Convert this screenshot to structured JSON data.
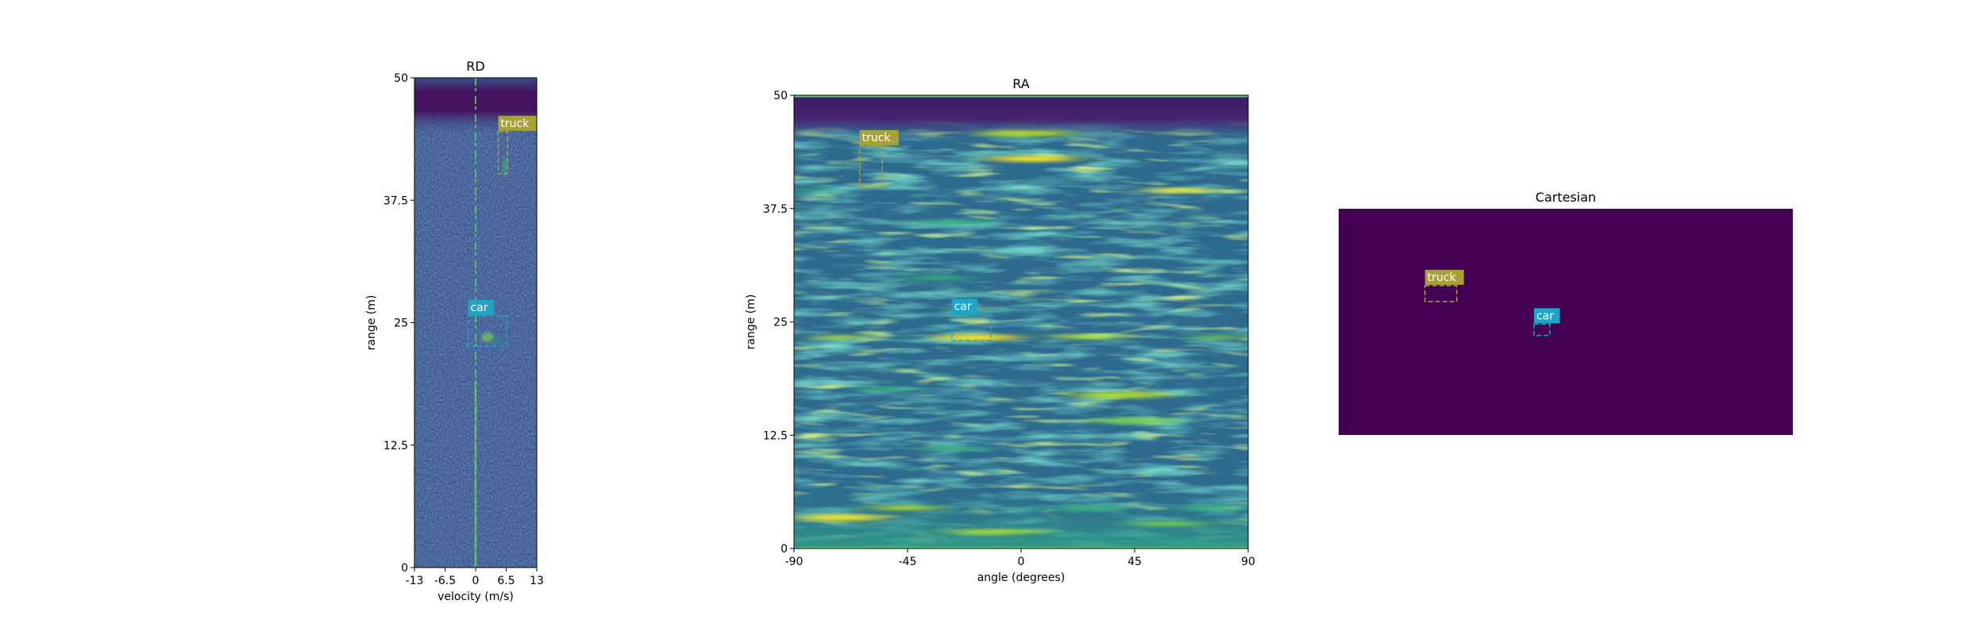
{
  "colors": {
    "dark": "#440154",
    "mid": "#3b528b",
    "teal": "#21918c",
    "green": "#5ec962",
    "yellow": "#fde725",
    "truck": "#a8a13a",
    "car": "#1fa5c5"
  },
  "chart_data": [
    {
      "type": "heatmap",
      "title": "RD",
      "xlabel": "velocity (m/s)",
      "ylabel": "range (m)",
      "xlim": [
        -13,
        13
      ],
      "ylim": [
        0,
        50
      ],
      "xticks": [
        "-13",
        "-6.5",
        "0",
        "6.5",
        "13"
      ],
      "yticks": [
        "0",
        "12.5",
        "25",
        "37.5",
        "50"
      ],
      "colormap": "viridis",
      "boxes": [
        {
          "label": "truck",
          "color": "truck",
          "x0": 4.8,
          "x1": 6.8,
          "y0": 40.2,
          "y1": 44.5
        },
        {
          "label": "car",
          "color": "car",
          "x0": -1.6,
          "x1": 6.6,
          "y0": 22.6,
          "y1": 25.7
        }
      ]
    },
    {
      "type": "heatmap",
      "title": "RA",
      "xlabel": "angle (degrees)",
      "ylabel": "range (m)",
      "xlim": [
        -90,
        90
      ],
      "ylim": [
        0,
        50
      ],
      "xticks": [
        "-90",
        "-45",
        "0",
        "45",
        "90"
      ],
      "yticks": [
        "0",
        "12.5",
        "25",
        "37.5",
        "50"
      ],
      "colormap": "viridis",
      "boxes": [
        {
          "label": "truck",
          "color": "truck",
          "x0": -64,
          "x1": -55,
          "y0": 39.8,
          "y1": 44.4
        },
        {
          "label": "car",
          "color": "car",
          "x0": -27.5,
          "x1": -12,
          "y0": 22.9,
          "y1": 25.8
        }
      ]
    },
    {
      "type": "heatmap",
      "title": "Cartesian",
      "boxes": [
        {
          "label": "truck",
          "color": "truck",
          "fx0": 0.19,
          "fx1": 0.26,
          "fy0": 0.34,
          "fy1": 0.41
        },
        {
          "label": "car",
          "color": "car",
          "fx0": 0.43,
          "fx1": 0.465,
          "fy0": 0.51,
          "fy1": 0.56
        }
      ]
    }
  ]
}
